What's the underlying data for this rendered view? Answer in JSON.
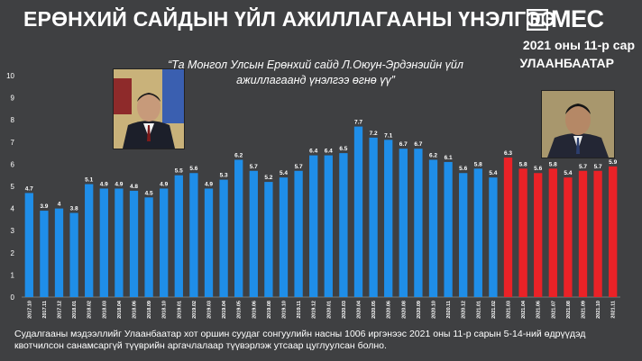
{
  "header": {
    "title": "ЕРӨНХИЙ САЙДЫН ҮЙЛ АЖИЛЛАГААНЫ ҮНЭЛГЭЭ",
    "logo_text": "MEC",
    "date": "2021 оны 11-р сар",
    "city": "УЛААНБААТАР"
  },
  "quote": "“Та Монгол Улсын Ерөнхий сайд Л.Оюун-Эрдэнэийн үйл ажиллагаанд үнэлгээ өгнө үү”",
  "footer": "Судалгааны мэдээллийг Улаанбаатар хот оршин суудаг сонгуулийн насны 1006 иргэнээс 2021 оны 11-р сарын 5-14-ний өдрүүдэд квотчилсон санамсаргүй түүврийн аргачлалаар түүвэрлэж утсаар цуглуулсан болно.",
  "colors": {
    "blue": "#1f8ee8",
    "red": "#ea2227",
    "background": "#3f4042"
  },
  "photos": [
    {
      "name": "portrait-left",
      "description": "portrait"
    },
    {
      "name": "portrait-right",
      "description": "portrait"
    }
  ],
  "chart_data": {
    "type": "bar",
    "ylim": [
      0,
      10
    ],
    "yticks": [
      0,
      1,
      2,
      3,
      4,
      5,
      6,
      7,
      8,
      9,
      10
    ],
    "categories": [
      "2017.10",
      "2017.11",
      "2017.12",
      "2018.01",
      "2018.02",
      "2018.03",
      "2018.04",
      "2018.06",
      "2018.09",
      "2018.10",
      "2019.01",
      "2019.02",
      "2019.03",
      "2019.04",
      "2019.05",
      "2019.06",
      "2019.08",
      "2019.10",
      "2019.11",
      "2019.12",
      "2020.01",
      "2020.03",
      "2020.04",
      "2020.05",
      "2020.06",
      "2020.08",
      "2020.09",
      "2020.10",
      "2020.11",
      "2020.12",
      "2021.01",
      "2021.02",
      "2021.03",
      "2021.04",
      "2021.06",
      "2021.07",
      "2021.08",
      "2021.09",
      "2021.10",
      "2021.11"
    ],
    "values": [
      4.7,
      3.9,
      4,
      3.8,
      5.1,
      4.9,
      4.9,
      4.8,
      4.5,
      4.9,
      5.5,
      5.6,
      4.9,
      5.3,
      6.2,
      5.7,
      5.2,
      5.4,
      5.7,
      6.4,
      6.4,
      6.5,
      7.7,
      7.2,
      7.1,
      6.7,
      6.7,
      6.2,
      6.1,
      5.6,
      5.8,
      5.4,
      6.3,
      5.8,
      5.6,
      5.8,
      5.4,
      5.7,
      5.7,
      5.9
    ],
    "value_labels": [
      "4.7",
      "3.9",
      "4",
      "3.8",
      "5.1",
      "4.9",
      "4.9",
      "4.8",
      "4.5",
      "4.9",
      "5.5",
      "5.6",
      "4.9",
      "5.3",
      "6.2",
      "5.7",
      "5.2",
      "5.4",
      "5.7",
      "6.4",
      "6.4",
      "6.5",
      "7.7",
      "7.2",
      "7.1",
      "6.7",
      "6.7",
      "6.2",
      "6.1",
      "5.6",
      "5.8",
      "5.4",
      "6.3",
      "5.8",
      "5.6",
      "5.8",
      "5.4",
      "5.7",
      "5.7",
      "5.9"
    ],
    "series_colors": [
      "blue",
      "blue",
      "blue",
      "blue",
      "blue",
      "blue",
      "blue",
      "blue",
      "blue",
      "blue",
      "blue",
      "blue",
      "blue",
      "blue",
      "blue",
      "blue",
      "blue",
      "blue",
      "blue",
      "blue",
      "blue",
      "blue",
      "blue",
      "blue",
      "blue",
      "blue",
      "blue",
      "blue",
      "blue",
      "blue",
      "blue",
      "blue",
      "red",
      "red",
      "red",
      "red",
      "red",
      "red",
      "red",
      "red"
    ],
    "grid": false,
    "legend": "none"
  }
}
